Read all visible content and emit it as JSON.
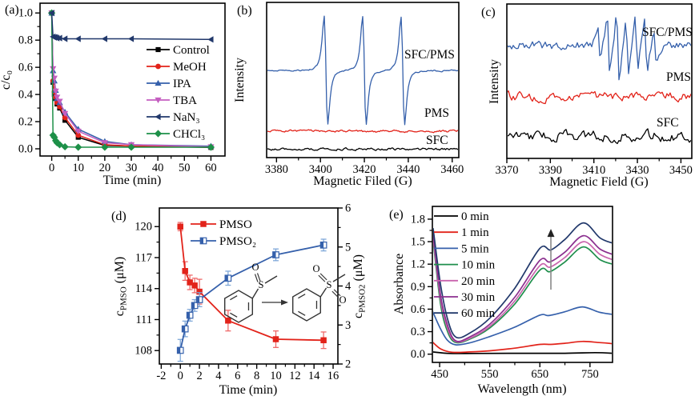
{
  "figure": {
    "background": "#ffffff",
    "description": "Five-panel figure: quenching kinetics, EPR spectra, PMSO oxidation, absorbance spectra"
  },
  "panels": {
    "a": {
      "tag": "(a)"
    },
    "b": {
      "tag": "(b)"
    },
    "c": {
      "tag": "(c)"
    },
    "d": {
      "tag": "(d)"
    },
    "e": {
      "tag": "(e)"
    }
  },
  "chart_data": [
    {
      "id": "a",
      "type": "line",
      "xlabel": "Time (min)",
      "ylabel": "c/c₀",
      "xlim": [
        -4.4,
        65.3
      ],
      "ylim": [
        -0.053,
        1.072
      ],
      "xticks": [
        0,
        10,
        20,
        30,
        40,
        50,
        60
      ],
      "xtick_labels": [
        "0",
        "10",
        "20",
        "30",
        "40",
        "50",
        "60"
      ],
      "yticks": [
        0,
        0.2,
        0.4,
        0.6,
        0.8,
        1
      ],
      "ytick_labels": [
        "0.0",
        "0.2",
        "0.4",
        "0.6",
        "0.8",
        "1.0"
      ],
      "legend_position": "right-middle",
      "x": [
        0,
        0.5,
        1,
        1.5,
        2,
        3,
        5,
        10,
        20,
        30,
        60
      ],
      "series": [
        {
          "name": "Control",
          "color": "#000000",
          "marker": "square",
          "values": [
            1.0,
            0.49,
            0.4,
            0.37,
            0.33,
            0.3,
            0.21,
            0.085,
            0.025,
            0.02,
            0.01
          ]
        },
        {
          "name": "MeOH",
          "color": "#e2231a",
          "marker": "circle",
          "values": [
            1.0,
            0.5,
            0.42,
            0.38,
            0.34,
            0.31,
            0.23,
            0.1,
            0.03,
            0.02,
            0.012
          ]
        },
        {
          "name": "IPA",
          "color": "#3560ab",
          "marker": "triangle-up",
          "values": [
            1.0,
            0.575,
            0.5,
            0.43,
            0.37,
            0.34,
            0.27,
            0.145,
            0.055,
            0.03,
            0.02
          ]
        },
        {
          "name": "TBA",
          "color": "#c45ec0",
          "marker": "triangle-down",
          "values": [
            1.0,
            0.59,
            0.52,
            0.425,
            0.38,
            0.35,
            0.26,
            0.13,
            0.045,
            0.03,
            0.015
          ]
        },
        {
          "name": "NaN₃",
          "color": "#21386b",
          "marker": "triangle-left",
          "values": [
            1.0,
            0.825,
            0.82,
            0.82,
            0.815,
            0.815,
            0.81,
            0.81,
            0.81,
            0.81,
            0.805
          ]
        },
        {
          "name": "CHCl₃",
          "color": "#1d9048",
          "marker": "diamond",
          "values": [
            1.0,
            0.1,
            0.085,
            0.06,
            0.045,
            0.03,
            0.015,
            0.012,
            0.012,
            0.012,
            0.012
          ]
        }
      ]
    },
    {
      "id": "b",
      "type": "line",
      "subtype": "epr",
      "xlabel": "Magnetic Filed (G)",
      "ylabel": "Intensity",
      "xlim": [
        3375.5,
        3463
      ],
      "xticks": [
        3380,
        3400,
        3420,
        3440,
        3460
      ],
      "xtick_labels": [
        "3380",
        "3400",
        "3420",
        "3440",
        "3460"
      ],
      "noise_step": 1.5,
      "series": [
        {
          "name": "SFC/PMS",
          "color": "#3560ab",
          "signal": "1:1:1 triplet",
          "peaks": [
            3402.5,
            3420,
            3437.5
          ],
          "rel_amps": [
            1,
            1,
            1
          ],
          "width_G": 1.4,
          "baseline_frac": 0.44,
          "peak_amp_frac": 0.35,
          "noise_frac": 0.004,
          "seed": 11
        },
        {
          "name": "PMS",
          "color": "#e2231a",
          "signal": "no signal",
          "peaks": [],
          "rel_amps": [],
          "width_G": 1,
          "baseline_frac": 0.83,
          "peak_amp_frac": 0,
          "noise_frac": 0.006,
          "seed": 22
        },
        {
          "name": "SFC",
          "color": "#000000",
          "signal": "no signal",
          "peaks": [],
          "rel_amps": [],
          "width_G": 1,
          "baseline_frac": 0.945,
          "peak_amp_frac": 0,
          "noise_frac": 0.006,
          "seed": 33
        }
      ]
    },
    {
      "id": "c",
      "type": "line",
      "subtype": "epr",
      "xlabel": "Magnetic Field (G)",
      "ylabel": "Intensity",
      "xlim": [
        3370,
        3455
      ],
      "xticks": [
        3370,
        3390,
        3410,
        3430,
        3450
      ],
      "xtick_labels": [
        "3370",
        "3390",
        "3410",
        "3430",
        "3450"
      ],
      "noise_step": 2,
      "series": [
        {
          "name": "SFC/PMS",
          "color": "#3560ab",
          "signal": "multiplet",
          "peaks": [
            3412.4,
            3416.7,
            3421.0,
            3425.3,
            3429.6,
            3433.9,
            3438.2
          ],
          "rel_amps": [
            0.5,
            0.85,
            1,
            0.9,
            0.8,
            0.88,
            0.5
          ],
          "width_G": 1.15,
          "baseline_frac": 0.27,
          "peak_amp_frac": 0.22,
          "noise_frac": 0.024,
          "seed": 5
        },
        {
          "name": "PMS",
          "color": "#e2231a",
          "signal": "noise only",
          "peaks": [],
          "rel_amps": [],
          "width_G": 1,
          "baseline_frac": 0.6,
          "peak_amp_frac": 0,
          "noise_frac": 0.024,
          "seed": 6
        },
        {
          "name": "SFC",
          "color": "#000000",
          "signal": "noise only",
          "peaks": [],
          "rel_amps": [],
          "width_G": 1,
          "baseline_frac": 0.855,
          "peak_amp_frac": 0,
          "noise_frac": 0.028,
          "seed": 7
        }
      ]
    },
    {
      "id": "d",
      "type": "line",
      "subtype": "dual-axis",
      "xlabel": "Time (min)",
      "ylabel_left": [
        {
          "t": "c"
        },
        {
          "t": "PMSO",
          "sub": true
        },
        {
          "t": " (μM)"
        }
      ],
      "ylabel_right": [
        {
          "t": "c"
        },
        {
          "t": "PMSO2",
          "sub": true
        },
        {
          "t": " (μM)"
        }
      ],
      "xlim": [
        -2.2,
        16.5
      ],
      "xticks": [
        -2,
        0,
        2,
        4,
        6,
        8,
        10,
        12,
        14,
        16
      ],
      "ylim_left": [
        106.7,
        121.8
      ],
      "yticks_left": [
        108,
        111,
        114,
        117,
        120
      ],
      "ylim_right": [
        2,
        6
      ],
      "yticks_right": [
        2,
        3,
        4,
        5,
        6
      ],
      "series": [
        {
          "name": "PMSO",
          "axis": "left",
          "color": "#e2231a",
          "err_color": "#ef6a6a",
          "marker": "square",
          "x": [
            0,
            0.5,
            1,
            1.5,
            2,
            5,
            10,
            15
          ],
          "y": [
            120,
            115.7,
            114.6,
            114.3,
            113.7,
            110.9,
            109.1,
            109.0
          ],
          "yerr": [
            0.4,
            0.9,
            0.7,
            0.7,
            1.2,
            1.0,
            0.8,
            0.8
          ]
        },
        {
          "name": "PMSO₂",
          "axis": "right",
          "color": "#3560ab",
          "err_color": "#7fa8d9",
          "marker": "square-half",
          "x": [
            0,
            0.5,
            1,
            1.5,
            2,
            5,
            10,
            15
          ],
          "y": [
            2.35,
            2.9,
            3.25,
            3.5,
            3.65,
            4.2,
            4.8,
            5.05
          ],
          "yerr": [
            0.28,
            0.2,
            0.15,
            0.15,
            0.18,
            0.18,
            0.15,
            0.15
          ]
        }
      ],
      "scheme": {
        "atom_s": "S",
        "atom_o": "O",
        "description": "methyl phenyl sulfoxide oxidized to methyl phenyl sulfone"
      }
    },
    {
      "id": "e",
      "type": "line",
      "subtype": "spectra",
      "xlabel": "Wavelength (nm)",
      "ylabel": "Absorbance",
      "xlim": [
        435.5,
        795
      ],
      "ylim": [
        -0.11,
        1.97
      ],
      "xticks": [
        450,
        550,
        650,
        750
      ],
      "xtick_labels": [
        "450",
        "550",
        "650",
        "750"
      ],
      "yticks": [
        0,
        0.3,
        0.6,
        0.9,
        1.2,
        1.5,
        1.8
      ],
      "ytick_labels": [
        "0.0",
        "0.3",
        "0.6",
        "0.9",
        "1.2",
        "1.5",
        "1.8"
      ],
      "legend_position": "upper-left",
      "arrow": {
        "x": 672,
        "y_from": 0.86,
        "y_to": 1.66
      },
      "series": [
        {
          "name": "0 min",
          "color": "#000000",
          "points": [
            [
              436,
              0.03
            ],
            [
              470,
              0.01
            ],
            [
              520,
              0.01
            ],
            [
              600,
              0.012
            ],
            [
              700,
              0.012
            ],
            [
              760,
              0.02
            ],
            [
              795,
              0.012
            ]
          ]
        },
        {
          "name": "1 min",
          "color": "#e2231a",
          "points": [
            [
              436,
              0.16
            ],
            [
              452,
              0.07
            ],
            [
              475,
              0.025
            ],
            [
              510,
              0.03
            ],
            [
              550,
              0.045
            ],
            [
              600,
              0.08
            ],
            [
              650,
              0.13
            ],
            [
              672,
              0.13
            ],
            [
              700,
              0.145
            ],
            [
              735,
              0.17
            ],
            [
              768,
              0.155
            ],
            [
              795,
              0.14
            ]
          ]
        },
        {
          "name": "5 min",
          "color": "#3560ab",
          "points": [
            [
              436,
              0.57
            ],
            [
              450,
              0.36
            ],
            [
              465,
              0.19
            ],
            [
              482,
              0.125
            ],
            [
              510,
              0.15
            ],
            [
              550,
              0.235
            ],
            [
              600,
              0.36
            ],
            [
              650,
              0.52
            ],
            [
              668,
              0.515
            ],
            [
              700,
              0.565
            ],
            [
              735,
              0.63
            ],
            [
              768,
              0.56
            ],
            [
              795,
              0.53
            ]
          ]
        },
        {
          "name": "10 min",
          "color": "#1f8f4c",
          "points": [
            [
              437,
              1.52
            ],
            [
              452,
              0.66
            ],
            [
              467,
              0.28
            ],
            [
              483,
              0.155
            ],
            [
              510,
              0.2
            ],
            [
              550,
              0.35
            ],
            [
              600,
              0.67
            ],
            [
              650,
              1.12
            ],
            [
              670,
              1.1
            ],
            [
              700,
              1.23
            ],
            [
              737,
              1.43
            ],
            [
              770,
              1.26
            ],
            [
              795,
              1.2
            ]
          ]
        },
        {
          "name": "20 min",
          "color": "#c964ad",
          "points": [
            [
              437,
              1.56
            ],
            [
              452,
              0.72
            ],
            [
              467,
              0.32
            ],
            [
              483,
              0.165
            ],
            [
              510,
              0.21
            ],
            [
              550,
              0.37
            ],
            [
              600,
              0.71
            ],
            [
              650,
              1.18
            ],
            [
              670,
              1.16
            ],
            [
              700,
              1.29
            ],
            [
              737,
              1.5
            ],
            [
              770,
              1.33
            ],
            [
              795,
              1.26
            ]
          ]
        },
        {
          "name": "30 min",
          "color": "#8b2f8f",
          "points": [
            [
              437,
              1.62
            ],
            [
              452,
              0.78
            ],
            [
              467,
              0.36
            ],
            [
              483,
              0.175
            ],
            [
              510,
              0.23
            ],
            [
              550,
              0.4
            ],
            [
              600,
              0.76
            ],
            [
              650,
              1.25
            ],
            [
              670,
              1.23
            ],
            [
              700,
              1.36
            ],
            [
              737,
              1.58
            ],
            [
              770,
              1.4
            ],
            [
              795,
              1.33
            ]
          ]
        },
        {
          "name": "60 min",
          "color": "#21386b",
          "points": [
            [
              437,
              1.68
            ],
            [
              452,
              0.92
            ],
            [
              467,
              0.44
            ],
            [
              483,
              0.225
            ],
            [
              510,
              0.28
            ],
            [
              550,
              0.48
            ],
            [
              600,
              0.88
            ],
            [
              650,
              1.41
            ],
            [
              672,
              1.39
            ],
            [
              700,
              1.53
            ],
            [
              737,
              1.75
            ],
            [
              770,
              1.55
            ],
            [
              795,
              1.48
            ]
          ]
        }
      ]
    }
  ]
}
